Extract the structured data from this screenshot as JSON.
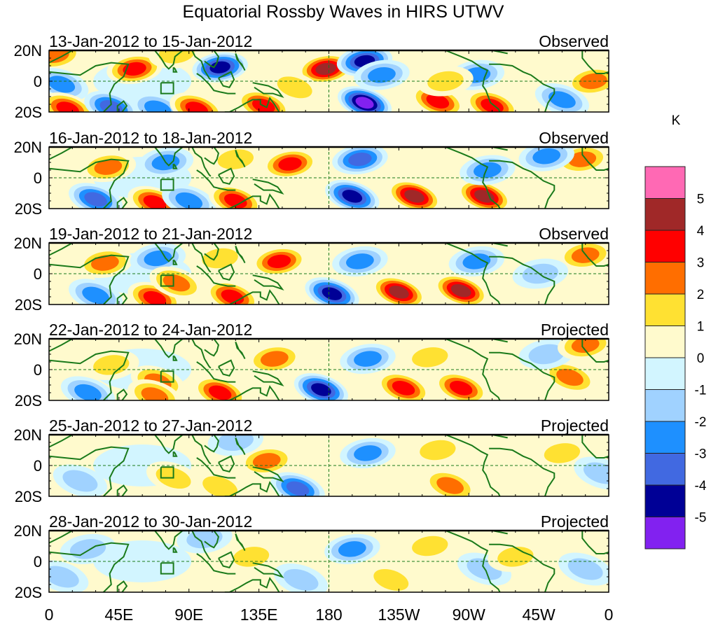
{
  "title": "Equatorial Rossby Waves in HIRS UTWV",
  "units_label": "K",
  "colors": {
    "coast": "#1a7a1a",
    "levels": [
      "#8221f0",
      "#000096",
      "#4169e1",
      "#1e90ff",
      "#a0d2ff",
      "#d2f5ff",
      "#fffacd",
      "#ffe132",
      "#ff6e00",
      "#ff0000",
      "#a02828",
      "#ff69b4"
    ]
  },
  "colorbar": {
    "labels": [
      "5",
      "4",
      "3",
      "2",
      "1",
      "0",
      "-1",
      "-2",
      "-3",
      "-4",
      "-5"
    ]
  },
  "y_labels": [
    "20N",
    "0",
    "20S"
  ],
  "x_labels": [
    "0",
    "45E",
    "90E",
    "135E",
    "180",
    "135W",
    "90W",
    "45W",
    "0"
  ],
  "chart_data": {
    "type": "heatmap",
    "title": "Equatorial Rossby Waves in HIRS UTWV",
    "units": "K",
    "x_range": [
      0,
      360
    ],
    "y_range": [
      -20,
      20
    ],
    "x_ticks": [
      "0",
      "45E",
      "90E",
      "135E",
      "180",
      "135W",
      "90W",
      "45W",
      "0"
    ],
    "y_ticks": [
      "20N",
      "0",
      "20S"
    ],
    "contour_levels": [
      -5,
      -4,
      -3,
      -2,
      -1,
      0,
      1,
      2,
      3,
      4,
      5
    ],
    "legend": "right",
    "panels": [
      {
        "date_range": "13-Jan-2012 to 15-Jan-2012",
        "label": "Observed",
        "features": [
          {
            "lon": 4,
            "lat": 17,
            "value": 3
          },
          {
            "lon": 55,
            "lat": 8,
            "value": 3.2
          },
          {
            "lon": 82,
            "lat": 18,
            "value": 2
          },
          {
            "lon": 110,
            "lat": 9,
            "value": -4.3
          },
          {
            "lon": 8,
            "lat": -2,
            "value": -2.5
          },
          {
            "lon": 12,
            "lat": -18,
            "value": 3.4
          },
          {
            "lon": 40,
            "lat": -17,
            "value": -3.4
          },
          {
            "lon": 70,
            "lat": -18,
            "value": -2.6
          },
          {
            "lon": 95,
            "lat": -18,
            "value": 3.3
          },
          {
            "lon": 138,
            "lat": -16,
            "value": 3.5
          },
          {
            "lon": 178,
            "lat": 8,
            "value": 4.6
          },
          {
            "lon": 203,
            "lat": 13,
            "value": -4.2
          },
          {
            "lon": 214,
            "lat": 4,
            "value": -2.5
          },
          {
            "lon": 203,
            "lat": -14,
            "value": -5.2
          },
          {
            "lon": 250,
            "lat": -13,
            "value": 3.2
          },
          {
            "lon": 275,
            "lat": 4,
            "value": -2.8
          },
          {
            "lon": 285,
            "lat": -16,
            "value": 3.6
          },
          {
            "lon": 255,
            "lat": 0,
            "value": 1.6
          },
          {
            "lon": 350,
            "lat": 0,
            "value": 2.3
          },
          {
            "lon": 158,
            "lat": -4,
            "value": 1.4
          },
          {
            "lon": 330,
            "lat": -12,
            "value": -2.3
          }
        ]
      },
      {
        "date_range": "16-Jan-2012 to 18-Jan-2012",
        "label": "Observed",
        "features": [
          {
            "lon": 38,
            "lat": 7,
            "value": 2.5
          },
          {
            "lon": 75,
            "lat": 10,
            "value": -2.3
          },
          {
            "lon": 30,
            "lat": -14,
            "value": -3.5
          },
          {
            "lon": 68,
            "lat": -16,
            "value": 3.3
          },
          {
            "lon": 90,
            "lat": -15,
            "value": -2.8
          },
          {
            "lon": 120,
            "lat": -15,
            "value": 3.5
          },
          {
            "lon": 155,
            "lat": 9,
            "value": 4.0
          },
          {
            "lon": 200,
            "lat": 12,
            "value": -3.4
          },
          {
            "lon": 195,
            "lat": -12,
            "value": -4.8
          },
          {
            "lon": 235,
            "lat": -12,
            "value": 4.2
          },
          {
            "lon": 280,
            "lat": -12,
            "value": 4.2
          },
          {
            "lon": 282,
            "lat": 5,
            "value": -2.6
          },
          {
            "lon": 343,
            "lat": 12,
            "value": 2.5
          },
          {
            "lon": 320,
            "lat": 14,
            "value": -2.3
          },
          {
            "lon": 120,
            "lat": 12,
            "value": 1.4
          }
        ]
      },
      {
        "date_range": "19-Jan-2012 to 21-Jan-2012",
        "label": "Observed",
        "features": [
          {
            "lon": 36,
            "lat": 7,
            "value": 2.4
          },
          {
            "lon": 70,
            "lat": 10,
            "value": -2.3
          },
          {
            "lon": 30,
            "lat": -14,
            "value": -3.0
          },
          {
            "lon": 68,
            "lat": -16,
            "value": 3.1
          },
          {
            "lon": 82,
            "lat": -6,
            "value": 2.3
          },
          {
            "lon": 118,
            "lat": -15,
            "value": 3.4
          },
          {
            "lon": 148,
            "lat": 8,
            "value": 3.5
          },
          {
            "lon": 200,
            "lat": 8,
            "value": -2.7
          },
          {
            "lon": 182,
            "lat": -13,
            "value": -5.0
          },
          {
            "lon": 225,
            "lat": -12,
            "value": 4.1
          },
          {
            "lon": 265,
            "lat": -11,
            "value": 4.2
          },
          {
            "lon": 275,
            "lat": 8,
            "value": -2.4
          },
          {
            "lon": 345,
            "lat": 12,
            "value": 2.6
          },
          {
            "lon": 110,
            "lat": 10,
            "value": 1.8
          },
          {
            "lon": 316,
            "lat": 0,
            "value": -1.8
          }
        ]
      },
      {
        "date_range": "22-Jan-2012 to 24-Jan-2012",
        "label": "Projected",
        "features": [
          {
            "lon": 40,
            "lat": 3,
            "value": 1.6
          },
          {
            "lon": 70,
            "lat": -8,
            "value": 2.5
          },
          {
            "lon": 68,
            "lat": -17,
            "value": 2.5
          },
          {
            "lon": 25,
            "lat": -15,
            "value": -2.6
          },
          {
            "lon": 110,
            "lat": -15,
            "value": 3.3
          },
          {
            "lon": 145,
            "lat": 7,
            "value": 2.6
          },
          {
            "lon": 175,
            "lat": -13,
            "value": -4.6
          },
          {
            "lon": 205,
            "lat": 7,
            "value": -2.8
          },
          {
            "lon": 228,
            "lat": -12,
            "value": 3.1
          },
          {
            "lon": 265,
            "lat": -12,
            "value": 3.4
          },
          {
            "lon": 335,
            "lat": -5,
            "value": 2.2
          },
          {
            "lon": 320,
            "lat": 10,
            "value": -1.8
          },
          {
            "lon": 345,
            "lat": 16,
            "value": 2.5
          },
          {
            "lon": 245,
            "lat": 8,
            "value": 1.6
          }
        ]
      },
      {
        "date_range": "25-Jan-2012 to 27-Jan-2012",
        "label": "Projected",
        "features": [
          {
            "lon": 140,
            "lat": 3,
            "value": 2.4
          },
          {
            "lon": 160,
            "lat": -15,
            "value": -3.2
          },
          {
            "lon": 205,
            "lat": 8,
            "value": -2.7
          },
          {
            "lon": 250,
            "lat": 10,
            "value": 1.8
          },
          {
            "lon": 258,
            "lat": -13,
            "value": 2.4
          },
          {
            "lon": 20,
            "lat": -10,
            "value": -1.8
          },
          {
            "lon": 120,
            "lat": 16,
            "value": -1.6
          },
          {
            "lon": 330,
            "lat": 8,
            "value": 1.4
          },
          {
            "lon": 355,
            "lat": -5,
            "value": -1.6
          },
          {
            "lon": 80,
            "lat": -8,
            "value": 1.3
          },
          {
            "lon": 110,
            "lat": -14,
            "value": 1.4
          }
        ]
      },
      {
        "date_range": "28-Jan-2012 to 30-Jan-2012",
        "label": "Projected",
        "features": [
          {
            "lon": 195,
            "lat": 8,
            "value": -2.6
          },
          {
            "lon": 130,
            "lat": 3,
            "value": 1.4
          },
          {
            "lon": 245,
            "lat": 10,
            "value": 1.5
          },
          {
            "lon": 220,
            "lat": -12,
            "value": 1.4
          },
          {
            "lon": 162,
            "lat": -12,
            "value": -1.7
          },
          {
            "lon": 280,
            "lat": -5,
            "value": -1.6
          },
          {
            "lon": 25,
            "lat": 8,
            "value": -1.3
          },
          {
            "lon": 345,
            "lat": -5,
            "value": -1.4
          },
          {
            "lon": 8,
            "lat": -10,
            "value": -1.4
          },
          {
            "lon": 300,
            "lat": 3,
            "value": 1.3
          },
          {
            "lon": 100,
            "lat": 15,
            "value": -1.3
          }
        ]
      }
    ]
  }
}
